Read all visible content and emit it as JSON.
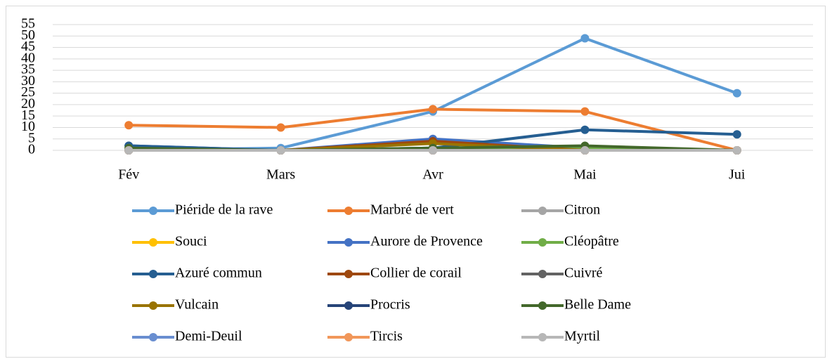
{
  "chart_data": {
    "type": "line",
    "categories": [
      "Fév",
      "Mars",
      "Avr",
      "Mai",
      "Jui"
    ],
    "ylim": [
      0,
      55
    ],
    "yticks": [
      0,
      5,
      10,
      15,
      20,
      25,
      30,
      35,
      40,
      45,
      50,
      55
    ],
    "grid": true,
    "legend": "bottom",
    "series": [
      {
        "name": "Piéride de la rave",
        "color": "#5b9bd5",
        "values": [
          0,
          1,
          17,
          49,
          25
        ]
      },
      {
        "name": "Marbré de vert",
        "color": "#ed7d31",
        "values": [
          11,
          10,
          18,
          17,
          0
        ]
      },
      {
        "name": "Citron",
        "color": "#a5a5a5",
        "values": [
          0,
          0,
          0,
          0,
          0
        ]
      },
      {
        "name": "Souci",
        "color": "#ffc000",
        "values": [
          0,
          0,
          0,
          0,
          0
        ]
      },
      {
        "name": "Aurore de Provence",
        "color": "#4472c4",
        "values": [
          2,
          0,
          5,
          1,
          0
        ]
      },
      {
        "name": "Cléopâtre",
        "color": "#70ad47",
        "values": [
          1,
          0,
          1,
          1,
          0
        ]
      },
      {
        "name": "Azuré commun",
        "color": "#255e91",
        "values": [
          2,
          0,
          1,
          9,
          7
        ]
      },
      {
        "name": "Collier de corail",
        "color": "#9e480e",
        "values": [
          0,
          0,
          4,
          0,
          0
        ]
      },
      {
        "name": "Cuivré",
        "color": "#636363",
        "values": [
          0,
          0,
          0,
          0,
          0
        ]
      },
      {
        "name": "Vulcain",
        "color": "#997300",
        "values": [
          0,
          0,
          3,
          0,
          0
        ]
      },
      {
        "name": "Procris",
        "color": "#264478",
        "values": [
          0,
          0,
          0,
          0,
          0
        ]
      },
      {
        "name": "Belle Dame",
        "color": "#43682b",
        "values": [
          1,
          0,
          1,
          2,
          0
        ]
      },
      {
        "name": "Demi-Deuil",
        "color": "#698ed0",
        "values": [
          0,
          0,
          0,
          0,
          0
        ]
      },
      {
        "name": "Tircis",
        "color": "#f1975a",
        "values": [
          0,
          0,
          0,
          0,
          0
        ]
      },
      {
        "name": "Myrtil",
        "color": "#b7b7b7",
        "values": [
          0,
          0,
          0,
          0,
          0
        ]
      }
    ]
  }
}
